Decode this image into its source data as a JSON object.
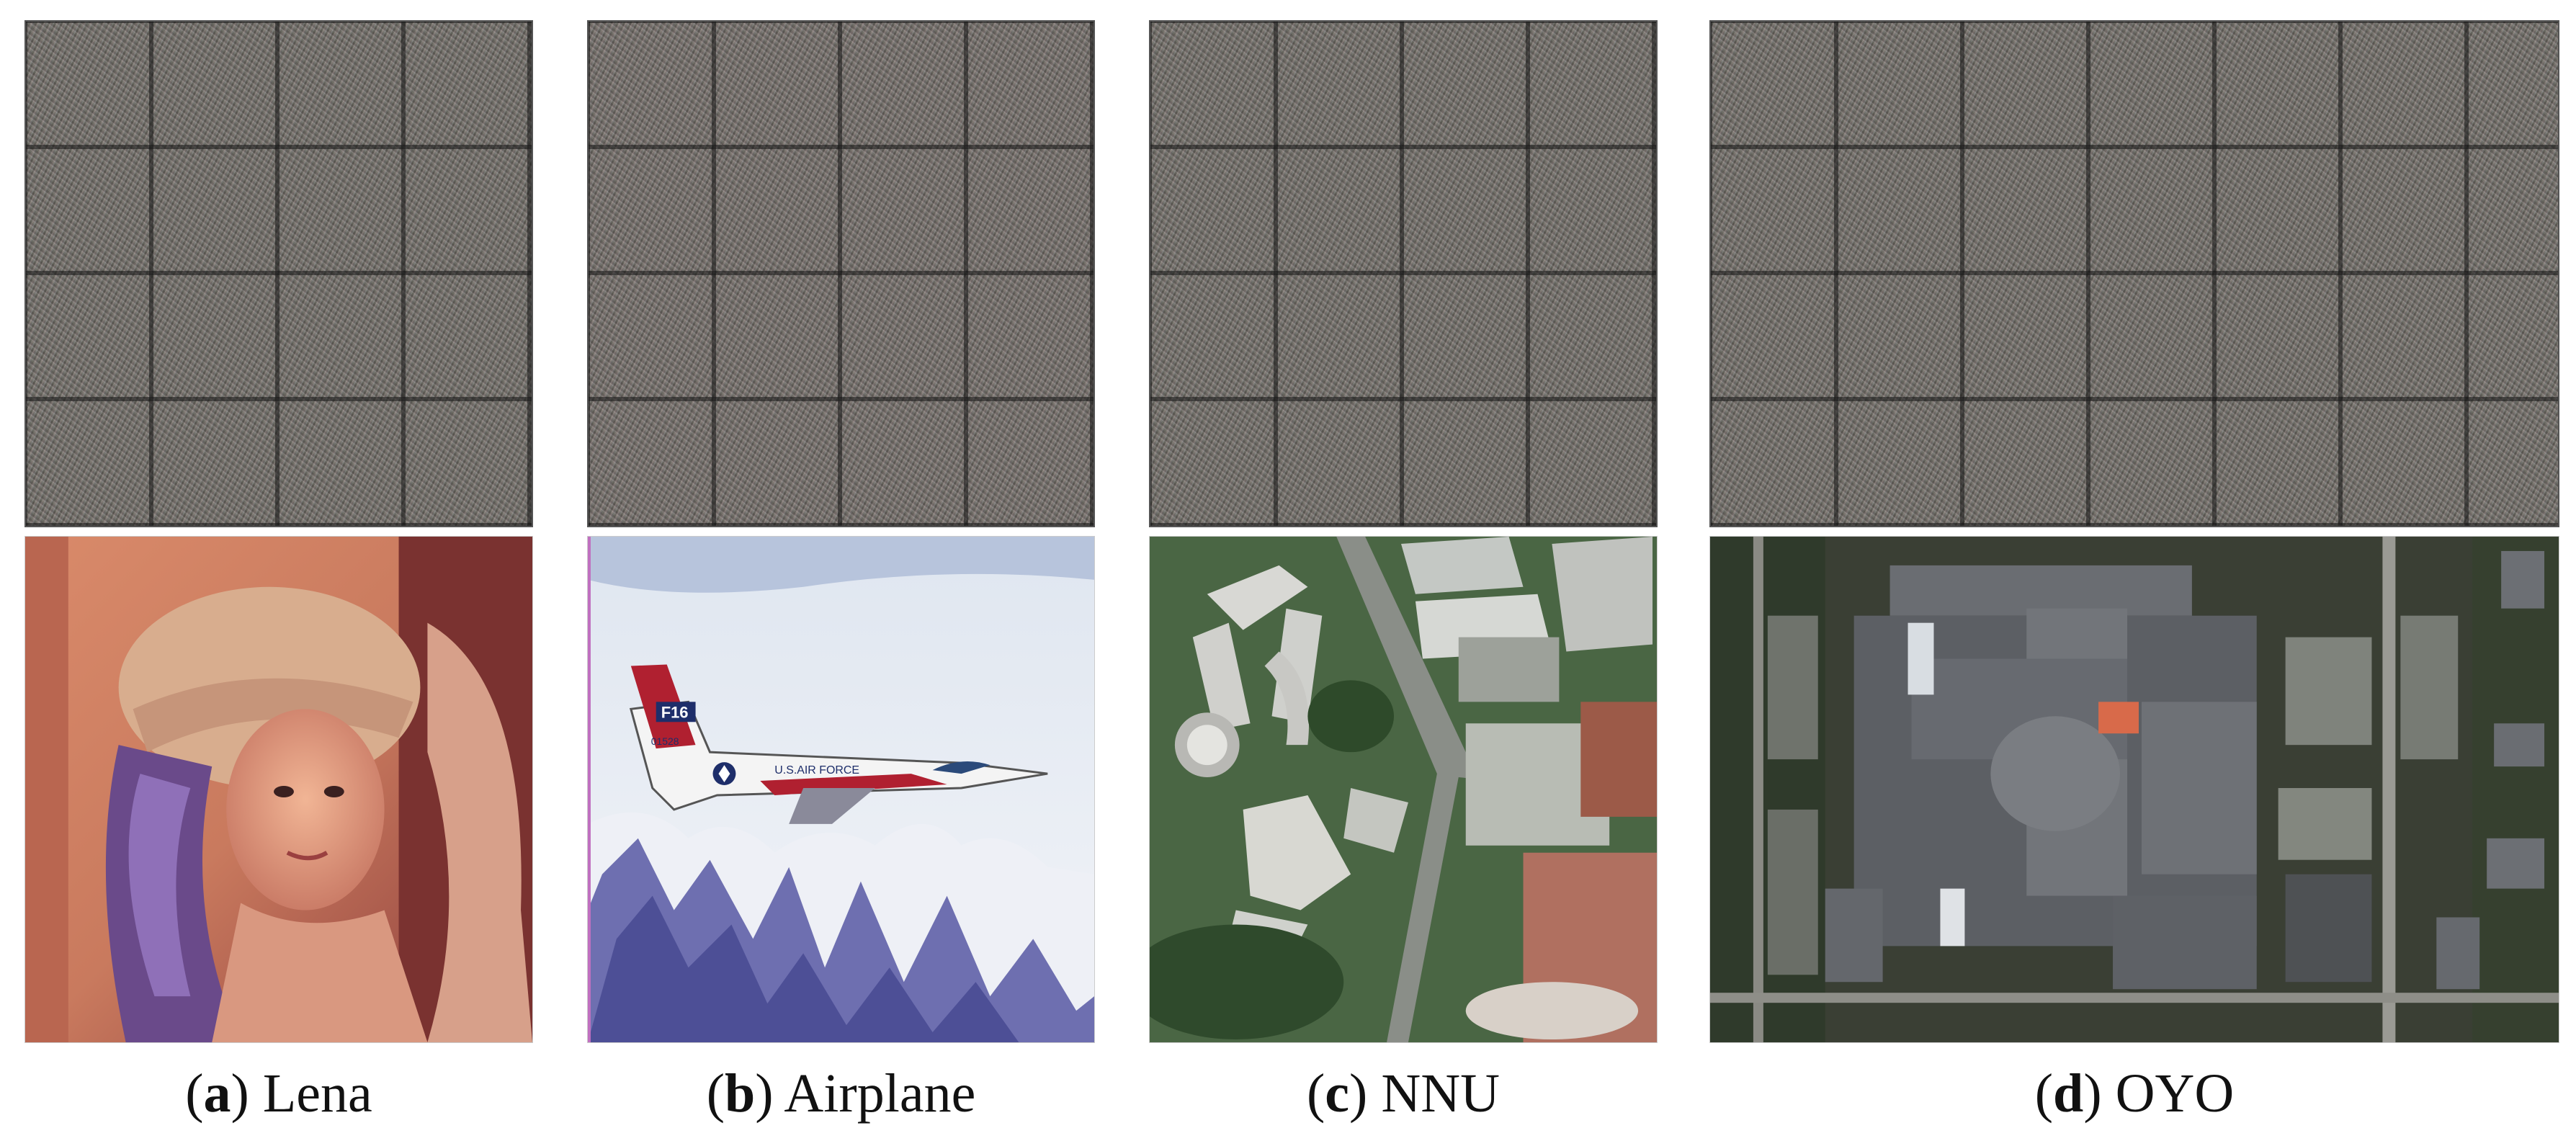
{
  "figure": {
    "panels": [
      {
        "id": "a",
        "letter": "a",
        "name": "Lena"
      },
      {
        "id": "b",
        "letter": "b",
        "name": "Airplane"
      },
      {
        "id": "c",
        "letter": "c",
        "name": "NNU"
      },
      {
        "id": "d",
        "letter": "d",
        "name": "OYO"
      }
    ],
    "airplane_marks": {
      "tail": "F16",
      "serial": "01528",
      "fuselage": "U.S.AIR FORCE"
    }
  }
}
